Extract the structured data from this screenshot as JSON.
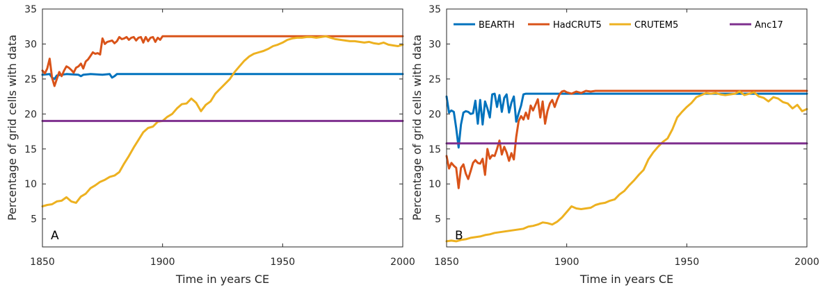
{
  "chart_data": [
    {
      "type": "line",
      "panel_label": "A",
      "xlabel": "Time in years CE",
      "ylabel": "Percentage of grid cells with data",
      "xlim": [
        1850,
        2000
      ],
      "ylim": [
        1,
        35
      ],
      "xticks": [
        "1850",
        "1900",
        "1950",
        "2000"
      ],
      "yticks": [
        "5",
        "10",
        "15",
        "20",
        "25",
        "30",
        "35"
      ],
      "grid": false,
      "legend": false,
      "series": [
        {
          "color": "#0072bd",
          "x": [
            1850,
            1853,
            1854,
            1855,
            1856,
            1858,
            1860,
            1865,
            1866,
            1867,
            1870,
            1875,
            1878,
            1879,
            1880,
            1881,
            1885,
            1900,
            1950,
            2000
          ],
          "y": [
            25.6,
            25.7,
            25.2,
            25.0,
            25.5,
            25.6,
            25.7,
            25.6,
            25.4,
            25.6,
            25.7,
            25.6,
            25.7,
            25.2,
            25.4,
            25.7,
            25.7,
            25.7,
            25.7,
            25.7
          ]
        },
        {
          "color": "#d95319",
          "x": [
            1850,
            1851,
            1852,
            1853,
            1854,
            1855,
            1856,
            1857,
            1858,
            1859,
            1860,
            1861,
            1862,
            1863,
            1864,
            1865,
            1866,
            1867,
            1868,
            1869,
            1870,
            1871,
            1872,
            1873,
            1874,
            1875,
            1876,
            1877,
            1878,
            1879,
            1880,
            1881,
            1882,
            1883,
            1884,
            1885,
            1886,
            1887,
            1888,
            1889,
            1890,
            1891,
            1892,
            1893,
            1894,
            1895,
            1896,
            1897,
            1898,
            1899,
            1900,
            1950,
            2000
          ],
          "y": [
            26.2,
            25.8,
            26.5,
            27.9,
            25.2,
            24.0,
            25.0,
            26.0,
            25.4,
            26.2,
            26.8,
            26.6,
            26.3,
            25.9,
            26.6,
            26.8,
            27.2,
            26.5,
            27.5,
            27.8,
            28.3,
            28.8,
            28.6,
            28.7,
            28.5,
            30.8,
            30.0,
            30.3,
            30.4,
            30.5,
            30.1,
            30.4,
            31.0,
            30.7,
            30.8,
            31.0,
            30.6,
            30.9,
            31.0,
            30.5,
            30.9,
            31.0,
            30.2,
            31.0,
            30.4,
            30.9,
            31.0,
            30.3,
            30.9,
            30.6,
            31.1,
            31.1,
            31.1
          ]
        },
        {
          "color": "#edb120",
          "x": [
            1850,
            1852,
            1854,
            1856,
            1858,
            1860,
            1862,
            1864,
            1866,
            1868,
            1870,
            1872,
            1874,
            1876,
            1878,
            1880,
            1882,
            1884,
            1886,
            1888,
            1890,
            1892,
            1894,
            1896,
            1898,
            1900,
            1902,
            1904,
            1906,
            1908,
            1910,
            1912,
            1914,
            1916,
            1918,
            1920,
            1922,
            1924,
            1926,
            1928,
            1930,
            1932,
            1934,
            1936,
            1938,
            1940,
            1942,
            1944,
            1946,
            1948,
            1950,
            1952,
            1954,
            1956,
            1958,
            1960,
            1962,
            1964,
            1966,
            1968,
            1970,
            1972,
            1974,
            1976,
            1978,
            1980,
            1982,
            1984,
            1986,
            1988,
            1990,
            1992,
            1994,
            1996,
            1998,
            2000
          ],
          "y": [
            6.8,
            7.0,
            7.1,
            7.5,
            7.6,
            8.1,
            7.5,
            7.3,
            8.2,
            8.6,
            9.4,
            9.8,
            10.3,
            10.6,
            11.0,
            11.2,
            11.7,
            12.9,
            14.0,
            15.2,
            16.3,
            17.4,
            18.0,
            18.2,
            18.9,
            19.0,
            19.6,
            20.0,
            20.8,
            21.4,
            21.5,
            22.2,
            21.6,
            20.4,
            21.3,
            21.8,
            22.9,
            23.6,
            24.3,
            25.0,
            26.0,
            26.8,
            27.6,
            28.2,
            28.6,
            28.8,
            29.0,
            29.3,
            29.7,
            29.9,
            30.2,
            30.6,
            30.8,
            30.9,
            30.9,
            31.0,
            31.0,
            30.9,
            31.0,
            31.1,
            30.9,
            30.7,
            30.6,
            30.5,
            30.4,
            30.4,
            30.3,
            30.2,
            30.3,
            30.1,
            30.0,
            30.2,
            29.9,
            29.8,
            29.7,
            29.9
          ]
        },
        {
          "color": "#7e2f8e",
          "x": [
            1850,
            2000
          ],
          "y": [
            19.0,
            19.0
          ]
        }
      ]
    },
    {
      "type": "line",
      "panel_label": "B",
      "xlabel": "Time in years CE",
      "ylabel": "Percentage of grid cells with data",
      "xlim": [
        1850,
        2000
      ],
      "ylim": [
        1,
        35
      ],
      "xticks": [
        "1850",
        "1900",
        "1950",
        "2000"
      ],
      "yticks": [
        "5",
        "10",
        "15",
        "20",
        "25",
        "30",
        "35"
      ],
      "grid": false,
      "legend": "top",
      "series": [
        {
          "name": "BEARTH",
          "color": "#0072bd",
          "x": [
            1850,
            1851,
            1852,
            1853,
            1854,
            1855,
            1856,
            1857,
            1858,
            1859,
            1860,
            1861,
            1862,
            1863,
            1864,
            1865,
            1866,
            1867,
            1868,
            1869,
            1870,
            1871,
            1872,
            1873,
            1874,
            1875,
            1876,
            1877,
            1878,
            1879,
            1880,
            1881,
            1882,
            1883,
            1884,
            1885,
            1890,
            1950,
            2000
          ],
          "y": [
            22.5,
            20.2,
            20.5,
            20.3,
            18.0,
            15.2,
            18.5,
            20.2,
            20.4,
            20.3,
            20.0,
            20.1,
            21.9,
            18.6,
            22.0,
            18.5,
            21.8,
            20.8,
            19.5,
            22.8,
            22.9,
            21.0,
            22.7,
            20.3,
            22.3,
            22.8,
            20.2,
            21.6,
            22.5,
            18.9,
            20.1,
            21.2,
            22.8,
            22.9,
            22.9,
            22.9,
            22.9,
            22.9,
            22.9
          ]
        },
        {
          "name": "HadCRUT5",
          "color": "#d95319",
          "x": [
            1850,
            1851,
            1852,
            1853,
            1854,
            1855,
            1856,
            1857,
            1858,
            1859,
            1860,
            1861,
            1862,
            1863,
            1864,
            1865,
            1866,
            1867,
            1868,
            1869,
            1870,
            1871,
            1872,
            1873,
            1874,
            1875,
            1876,
            1877,
            1878,
            1879,
            1880,
            1881,
            1882,
            1883,
            1884,
            1885,
            1886,
            1887,
            1888,
            1889,
            1890,
            1891,
            1892,
            1893,
            1894,
            1895,
            1896,
            1897,
            1898,
            1899,
            1900,
            1902,
            1904,
            1906,
            1908,
            1910,
            1912,
            1950,
            2000
          ],
          "y": [
            14.0,
            12.2,
            13.0,
            12.6,
            12.3,
            9.4,
            12.3,
            12.8,
            11.5,
            10.7,
            11.8,
            13.0,
            13.4,
            13.0,
            12.9,
            13.6,
            11.3,
            15.0,
            13.6,
            14.1,
            14.0,
            15.0,
            16.2,
            14.2,
            15.3,
            14.5,
            13.3,
            14.4,
            13.5,
            16.7,
            19.0,
            19.7,
            19.2,
            20.2,
            19.3,
            21.2,
            20.5,
            21.3,
            22.1,
            19.5,
            21.8,
            18.6,
            20.4,
            21.5,
            22.0,
            21.0,
            22.0,
            22.8,
            23.2,
            23.3,
            23.1,
            22.9,
            23.2,
            23.0,
            23.3,
            23.2,
            23.3,
            23.3,
            23.3
          ]
        },
        {
          "name": "CRUTEM5",
          "color": "#edb120",
          "x": [
            1850,
            1852,
            1854,
            1856,
            1858,
            1860,
            1862,
            1864,
            1866,
            1868,
            1870,
            1872,
            1874,
            1876,
            1878,
            1880,
            1882,
            1884,
            1886,
            1888,
            1890,
            1892,
            1894,
            1896,
            1898,
            1900,
            1902,
            1904,
            1906,
            1908,
            1910,
            1912,
            1914,
            1916,
            1918,
            1920,
            1922,
            1924,
            1926,
            1928,
            1930,
            1932,
            1934,
            1936,
            1938,
            1940,
            1942,
            1944,
            1946,
            1948,
            1950,
            1952,
            1954,
            1956,
            1958,
            1960,
            1962,
            1964,
            1966,
            1968,
            1970,
            1972,
            1974,
            1976,
            1978,
            1980,
            1982,
            1984,
            1986,
            1988,
            1990,
            1992,
            1994,
            1996,
            1998,
            2000
          ],
          "y": [
            1.8,
            1.9,
            1.8,
            2.0,
            2.1,
            2.3,
            2.4,
            2.5,
            2.7,
            2.8,
            3.0,
            3.1,
            3.2,
            3.3,
            3.4,
            3.5,
            3.6,
            3.9,
            4.0,
            4.2,
            4.5,
            4.4,
            4.2,
            4.6,
            5.2,
            6.0,
            6.8,
            6.5,
            6.4,
            6.5,
            6.6,
            7.0,
            7.2,
            7.3,
            7.6,
            7.8,
            8.5,
            9.0,
            9.8,
            10.5,
            11.3,
            12.0,
            13.5,
            14.5,
            15.3,
            16.0,
            16.5,
            17.8,
            19.5,
            20.3,
            21.0,
            21.6,
            22.4,
            22.7,
            23.0,
            22.9,
            23.0,
            22.8,
            22.7,
            22.8,
            22.9,
            23.2,
            22.7,
            22.9,
            23.1,
            22.5,
            22.3,
            21.8,
            22.4,
            22.2,
            21.7,
            21.5,
            20.8,
            21.3,
            20.4,
            20.7
          ]
        },
        {
          "name": "Anc17",
          "color": "#7e2f8e",
          "x": [
            1850,
            2000
          ],
          "y": [
            15.8,
            15.8
          ]
        }
      ]
    }
  ]
}
